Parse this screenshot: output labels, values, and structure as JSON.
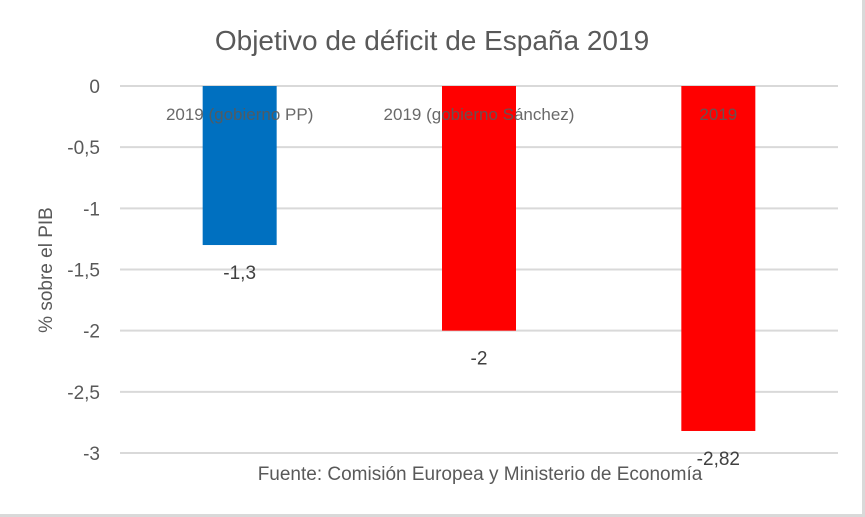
{
  "chart_data": {
    "type": "bar",
    "title": "Objetivo de déficit de España 2019",
    "ylabel": "% sobre el PIB",
    "xlabel": "",
    "categories": [
      "2019 (gobierno PP)",
      "2019 (gobierno Sánchez)",
      "2019"
    ],
    "values": [
      -1.3,
      -2,
      -2.82
    ],
    "data_labels": [
      "-1,3",
      "-2",
      "-2,82"
    ],
    "colors": [
      "#0070c0",
      "#ff0000",
      "#ff0000"
    ],
    "ylim": [
      -3,
      0
    ],
    "yticks": [
      0,
      -0.5,
      -1,
      -1.5,
      -2,
      -2.5,
      -3
    ],
    "ytick_labels": [
      "0",
      "-0,5",
      "-1",
      "-1,5",
      "-2",
      "-2,5",
      "-3"
    ],
    "grid": true,
    "annotation": "Fuente: Comisión Europea y Ministerio de Economía"
  }
}
